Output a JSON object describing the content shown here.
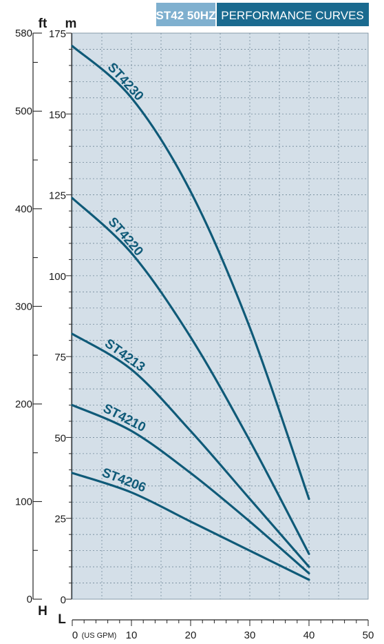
{
  "header": {
    "model_label": "ST42 50HZ",
    "title_label": "PERFORMANCE CURVES",
    "model_bg": "#7fb0cf",
    "title_bg": "#1a6a8f"
  },
  "colors": {
    "plot_bg": "#d4dfe8",
    "curve": "#0f5a78",
    "grid": "#6f8797",
    "axis": "#222222"
  },
  "chart_data": {
    "type": "line",
    "x_unit_label": "L",
    "x_unit_note": "(US GPM)",
    "xlim": [
      0,
      50
    ],
    "x_ticks": [
      0,
      10,
      20,
      30,
      40,
      50
    ],
    "ylim_m": [
      0,
      175
    ],
    "m_ticks": [
      0,
      25,
      50,
      75,
      100,
      125,
      150,
      175
    ],
    "ylim_ft": [
      0,
      580
    ],
    "ft_ticks": [
      0,
      100,
      200,
      300,
      400,
      500,
      580
    ],
    "left_axis_label": "ft",
    "right_axis_label": "m",
    "head_label": "H",
    "grid": true,
    "series": [
      {
        "name": "ST4230",
        "x": [
          0,
          10,
          20,
          30,
          40
        ],
        "y": [
          171,
          155,
          126,
          84,
          31
        ]
      },
      {
        "name": "ST4220",
        "x": [
          0,
          10,
          20,
          30,
          40
        ],
        "y": [
          124,
          107,
          81,
          49,
          14
        ]
      },
      {
        "name": "ST4213",
        "x": [
          0,
          10,
          20,
          30,
          40
        ],
        "y": [
          82,
          71,
          52,
          31,
          10
        ]
      },
      {
        "name": "ST4210",
        "x": [
          0,
          10,
          20,
          30,
          40
        ],
        "y": [
          60,
          52,
          39,
          24,
          8
        ]
      },
      {
        "name": "ST4206",
        "x": [
          0,
          10,
          20,
          30,
          40
        ],
        "y": [
          39,
          33,
          24,
          15,
          6
        ]
      }
    ]
  }
}
